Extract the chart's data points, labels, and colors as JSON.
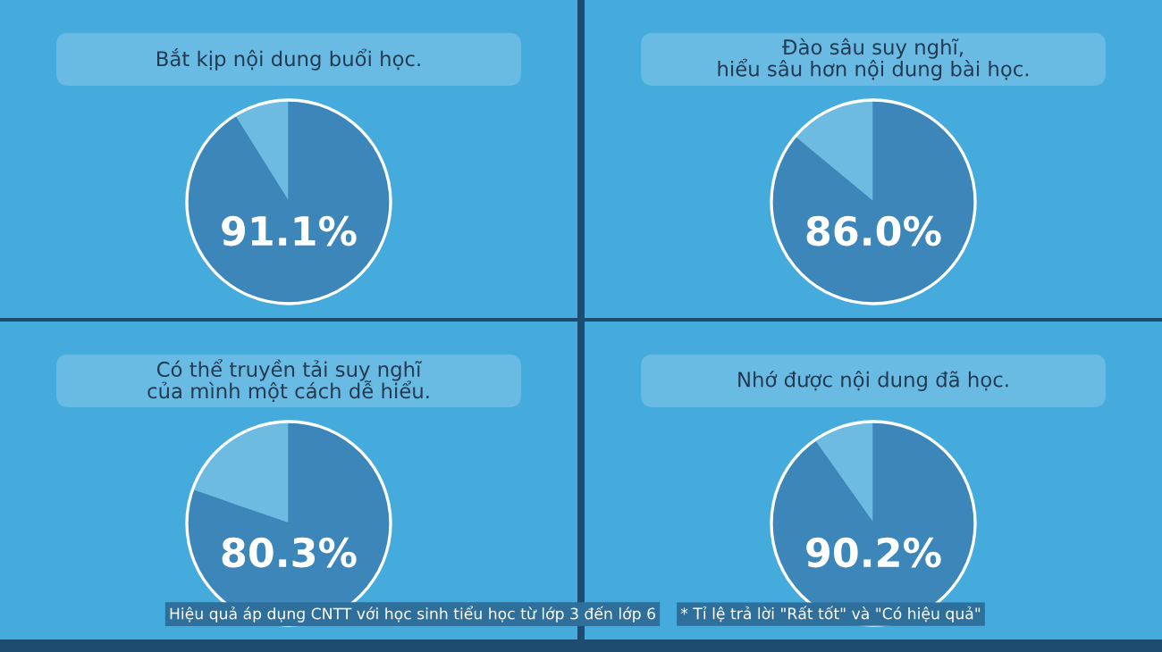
{
  "chart_data": [
    {
      "type": "pie",
      "title": "Bắt kịp nội dung buổi học.",
      "categories": [
        null,
        null
      ],
      "values": [
        91.1,
        8.9
      ],
      "colors": [
        "#3d86b9",
        "#6dbbe0"
      ],
      "value_labels": [
        "91.1%",
        null
      ]
    },
    {
      "type": "pie",
      "title": "Đào sâu suy nghĩ,\nhiểu sâu hơn nội dung bài học.",
      "categories": [
        null,
        null
      ],
      "values": [
        86.0,
        14.0
      ],
      "colors": [
        "#3d86b9",
        "#6dbbe0"
      ],
      "value_labels": [
        "86.0%",
        null
      ]
    },
    {
      "type": "pie",
      "title": "Có thể truyền tải suy nghĩ\ncủa mình một cách dễ hiểu.",
      "categories": [
        null,
        null
      ],
      "values": [
        80.3,
        19.7
      ],
      "colors": [
        "#3d86b9",
        "#6dbbe0"
      ],
      "value_labels": [
        "80.3%",
        null
      ]
    },
    {
      "type": "pie",
      "title": "Nhớ được nội dung đã học.",
      "categories": [
        null,
        null
      ],
      "values": [
        90.2,
        9.8
      ],
      "colors": [
        "#3d86b9",
        "#6dbbe0"
      ],
      "value_labels": [
        "90.2%",
        null
      ],
      "annotations": [
        "Hiệu quả áp dụng CNTT với học sinh tiểu học từ lớp 3 đến lớp 6",
        "* Tỉ lệ trả lời \"Rất tốt\" và \"Có hiệu quả\""
      ]
    }
  ]
}
